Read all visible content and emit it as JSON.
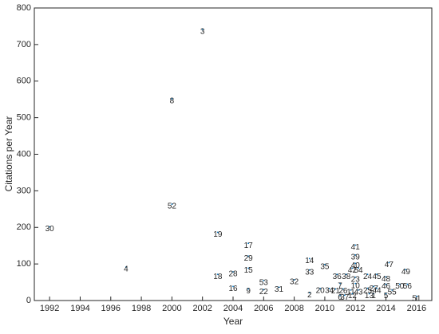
{
  "chart_data": {
    "type": "scatter",
    "xlabel": "Year",
    "ylabel": "Citations per Year",
    "xlim": [
      1991,
      2017
    ],
    "xticks": [
      1992,
      1994,
      1996,
      1998,
      2000,
      2002,
      2004,
      2006,
      2008,
      2010,
      2012,
      2014,
      2016
    ],
    "ylim": [
      0,
      800
    ],
    "yticks": [
      0,
      100,
      200,
      300,
      400,
      500,
      600,
      700,
      800
    ],
    "color": "#0072bd",
    "labels": [
      "1",
      "2",
      "3",
      "4",
      "5",
      "6",
      "7",
      "8",
      "9",
      "10",
      "11",
      "12",
      "13",
      "14",
      "15",
      "16",
      "17",
      "18",
      "19",
      "20",
      "21",
      "22",
      "23",
      "24",
      "25",
      "26",
      "27",
      "28",
      "29",
      "30",
      "31",
      "32",
      "33",
      "34",
      "35",
      "36",
      "37",
      "38",
      "39",
      "40",
      "41",
      "42",
      "43",
      "44",
      "45",
      "46",
      "47",
      "48",
      "49",
      "50",
      "51",
      "52",
      "53",
      "54",
      "55",
      "56"
    ],
    "x": [
      2013.2,
      2009,
      2002,
      1997,
      2014,
      2011,
      2011,
      2000,
      2005,
      2012,
      2011.7,
      2011.8,
      2012.9,
      2009,
      2005,
      2004,
      2005,
      2003,
      2003,
      2009.7,
      2010.7,
      2006,
      2012,
      2012.8,
      2012.8,
      2011.2,
      2013.2,
      2004,
      2005,
      1992,
      2007,
      2008,
      2009,
      2010.3,
      2010,
      2010.8,
      2011.3,
      2011.4,
      2012,
      2012,
      2012,
      2011.8,
      2012.2,
      2013.4,
      2013.4,
      2014,
      2014.2,
      2014,
      2015.3,
      2014.9,
      2016,
      2000,
      2006,
      2012.2,
      2014.4,
      2015.4
    ],
    "values": [
      12,
      15,
      735,
      85,
      12,
      8,
      40,
      545,
      25,
      40,
      22,
      12,
      12,
      108,
      82,
      32,
      150,
      65,
      180,
      26,
      25,
      23,
      57,
      65,
      27,
      25,
      32,
      72,
      115,
      195,
      30,
      50,
      77,
      26,
      92,
      65,
      8,
      65,
      118,
      95,
      145,
      82,
      22,
      27,
      65,
      38,
      97,
      58,
      78,
      38,
      5,
      257,
      48,
      82,
      22,
      38
    ]
  }
}
